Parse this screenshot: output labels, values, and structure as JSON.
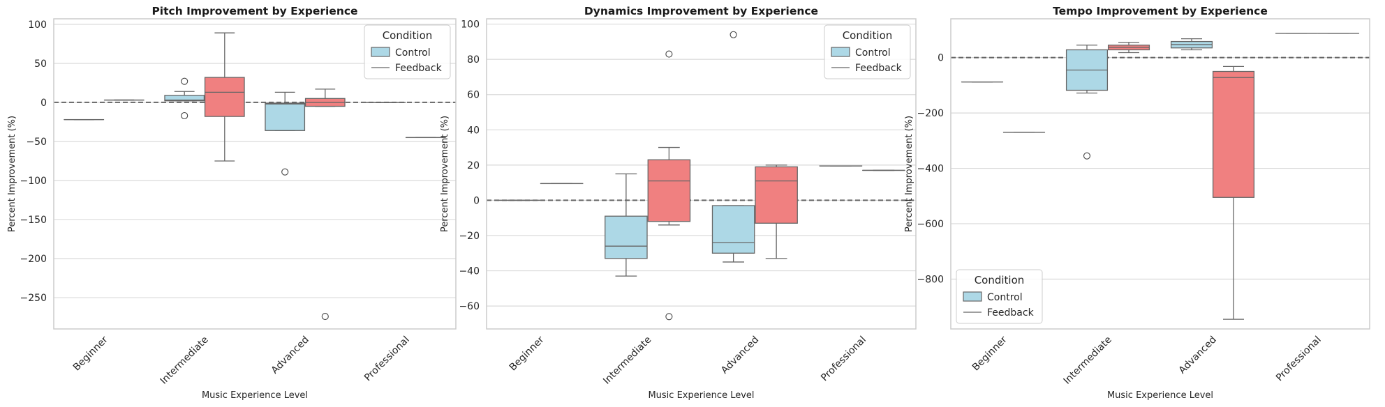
{
  "colors": {
    "control": "#add8e6",
    "feedback": "#f08080",
    "grid": "#d9d9d9",
    "line": "#666666",
    "frame": "#cccccc"
  },
  "chart_data": [
    {
      "type": "box",
      "title": "Pitch Improvement by Experience",
      "xlabel": "Music Experience Level",
      "ylabel": "Percent Improvement (%)",
      "categories": [
        "Beginner",
        "Intermediate",
        "Advanced",
        "Professional"
      ],
      "ylim": [
        -290,
        107
      ],
      "yticks": [
        100,
        50,
        0,
        -50,
        -100,
        -150,
        -200,
        -250
      ],
      "ytick_labels": [
        "100",
        "50",
        "0",
        "−50",
        "−100",
        "−150",
        "−200",
        "−250"
      ],
      "reference_line": 0,
      "legend": {
        "title": "Condition",
        "position": "top-right",
        "entries": [
          "Control",
          "Feedback"
        ]
      },
      "series": [
        {
          "name": "Control",
          "boxes": [
            {
              "category": "Beginner",
              "min": -22,
              "q1": -22,
              "median": -22,
              "q3": -22,
              "max": -22,
              "outliers": []
            },
            {
              "category": "Intermediate",
              "min": 2,
              "q1": 2,
              "median": 3,
              "q3": 9,
              "max": 14,
              "outliers": [
                27,
                -17
              ]
            },
            {
              "category": "Advanced",
              "min": -36,
              "q1": -36,
              "median": -2,
              "q3": -1,
              "max": 13,
              "outliers": [
                -89
              ]
            },
            {
              "category": "Professional",
              "min": 0,
              "q1": 0,
              "median": 0,
              "q3": 0,
              "max": 0,
              "outliers": []
            }
          ]
        },
        {
          "name": "Feedback",
          "boxes": [
            {
              "category": "Beginner",
              "min": 3,
              "q1": 3,
              "median": 3,
              "q3": 3,
              "max": 3,
              "outliers": []
            },
            {
              "category": "Intermediate",
              "min": -75,
              "q1": -18,
              "median": 13,
              "q3": 32,
              "max": 89,
              "outliers": []
            },
            {
              "category": "Advanced",
              "min": -5,
              "q1": -5,
              "median": 0,
              "q3": 5,
              "max": 17,
              "outliers": [
                -274
              ]
            },
            {
              "category": "Professional",
              "min": -45,
              "q1": -45,
              "median": -45,
              "q3": -45,
              "max": -45,
              "outliers": []
            }
          ]
        }
      ]
    },
    {
      "type": "box",
      "title": "Dynamics Improvement by Experience",
      "xlabel": "Music Experience Level",
      "ylabel": "Percent Improvement (%)",
      "categories": [
        "Beginner",
        "Intermediate",
        "Advanced",
        "Professional"
      ],
      "ylim": [
        -73,
        103
      ],
      "yticks": [
        100,
        80,
        60,
        40,
        20,
        0,
        -20,
        -40,
        -60
      ],
      "ytick_labels": [
        "100",
        "80",
        "60",
        "40",
        "20",
        "0",
        "−20",
        "−40",
        "−60"
      ],
      "reference_line": 0,
      "legend": {
        "title": "Condition",
        "position": "top-right",
        "entries": [
          "Control",
          "Feedback"
        ]
      },
      "series": [
        {
          "name": "Control",
          "boxes": [
            {
              "category": "Beginner",
              "min": 0,
              "q1": 0,
              "median": 0,
              "q3": 0,
              "max": 0,
              "outliers": []
            },
            {
              "category": "Intermediate",
              "min": -43,
              "q1": -33,
              "median": -26,
              "q3": -9,
              "max": 15,
              "outliers": []
            },
            {
              "category": "Advanced",
              "min": -35,
              "q1": -30,
              "median": -24,
              "q3": -3,
              "max": -3,
              "outliers": [
                94
              ]
            },
            {
              "category": "Professional",
              "min": 19.5,
              "q1": 19.5,
              "median": 19.5,
              "q3": 19.5,
              "max": 19.5,
              "outliers": []
            }
          ]
        },
        {
          "name": "Feedback",
          "boxes": [
            {
              "category": "Beginner",
              "min": 9.5,
              "q1": 9.5,
              "median": 9.5,
              "q3": 9.5,
              "max": 9.5,
              "outliers": []
            },
            {
              "category": "Intermediate",
              "min": -14,
              "q1": -12,
              "median": 11,
              "q3": 23,
              "max": 30,
              "outliers": [
                83,
                -66
              ]
            },
            {
              "category": "Advanced",
              "min": -33,
              "q1": -13,
              "median": 11,
              "q3": 19,
              "max": 20,
              "outliers": []
            },
            {
              "category": "Professional",
              "min": 17,
              "q1": 17,
              "median": 17,
              "q3": 17,
              "max": 17,
              "outliers": []
            }
          ]
        }
      ]
    },
    {
      "type": "box",
      "title": "Tempo Improvement by Experience",
      "xlabel": "Music Experience Level",
      "ylabel": "Percent Improvement (%)",
      "categories": [
        "Beginner",
        "Intermediate",
        "Advanced",
        "Professional"
      ],
      "ylim": [
        -980,
        140
      ],
      "yticks": [
        0,
        -200,
        -400,
        -600,
        -800
      ],
      "ytick_labels": [
        "0",
        "−200",
        "−400",
        "−600",
        "−800"
      ],
      "reference_line": 0,
      "legend": {
        "title": "Condition",
        "position": "bottom-left",
        "entries": [
          "Control",
          "Feedback"
        ]
      },
      "series": [
        {
          "name": "Control",
          "boxes": [
            {
              "category": "Beginner",
              "min": -88,
              "q1": -88,
              "median": -88,
              "q3": -88,
              "max": -88,
              "outliers": []
            },
            {
              "category": "Intermediate",
              "min": -128,
              "q1": -118,
              "median": -45,
              "q3": 28,
              "max": 45,
              "outliers": [
                -355
              ]
            },
            {
              "category": "Advanced",
              "min": 28,
              "q1": 35,
              "median": 47,
              "q3": 58,
              "max": 68,
              "outliers": []
            },
            {
              "category": "Professional",
              "min": 88,
              "q1": 88,
              "median": 88,
              "q3": 88,
              "max": 88,
              "outliers": []
            }
          ]
        },
        {
          "name": "Feedback",
          "boxes": [
            {
              "category": "Beginner",
              "min": -270,
              "q1": -270,
              "median": -270,
              "q3": -270,
              "max": -270,
              "outliers": []
            },
            {
              "category": "Intermediate",
              "min": 18,
              "q1": 28,
              "median": 37,
              "q3": 45,
              "max": 55,
              "outliers": []
            },
            {
              "category": "Advanced",
              "min": -945,
              "q1": -505,
              "median": -72,
              "q3": -50,
              "max": -32,
              "outliers": []
            },
            {
              "category": "Professional",
              "min": 88,
              "q1": 88,
              "median": 88,
              "q3": 88,
              "max": 88,
              "outliers": []
            }
          ]
        }
      ]
    }
  ]
}
